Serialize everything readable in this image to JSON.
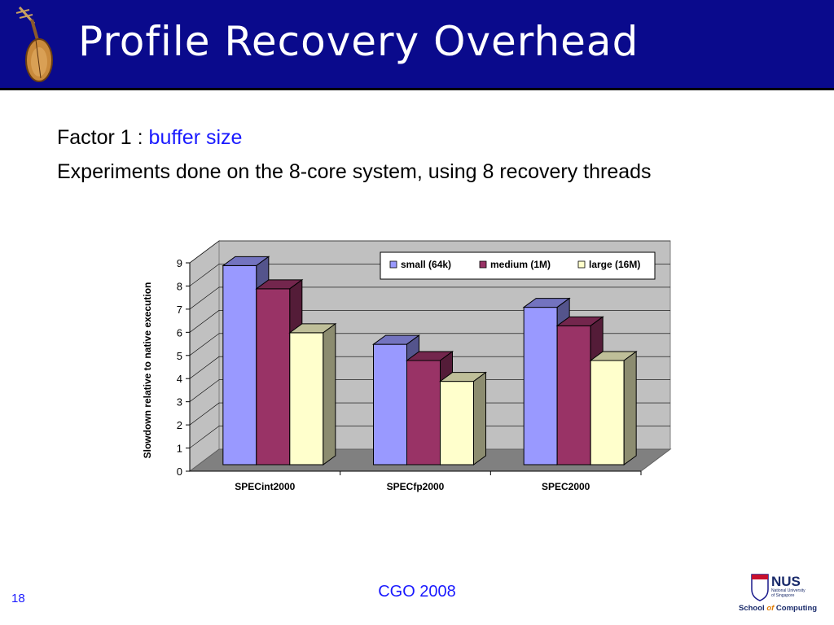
{
  "slide": {
    "title": "Profile Recovery Overhead",
    "factor_label": "Factor 1 : ",
    "factor_value": "buffer size",
    "experiments": "Experiments done on the 8-core system, using 8 recovery threads",
    "page_number": "18",
    "footer": "CGO 2008",
    "logo_icon": "pipa-lute-icon",
    "institution_logo": {
      "name": "NUS",
      "line1": "National University",
      "line2": "of Singapore",
      "school_prefix": "School ",
      "school_of": "of",
      "school_suffix": " Computing"
    }
  },
  "colors": {
    "title_bar": "#0a0a8c",
    "highlight_text": "#1a1aff"
  },
  "chart_data": {
    "type": "bar",
    "categories": [
      "SPECint2000",
      "SPECfp2000",
      "SPEC2000"
    ],
    "series": [
      {
        "name": "small (64k)",
        "values": [
          8.6,
          5.2,
          6.8
        ],
        "color": "#9999ff"
      },
      {
        "name": "medium (1M)",
        "values": [
          7.6,
          4.5,
          6.0
        ],
        "color": "#993366"
      },
      {
        "name": "large (16M)",
        "values": [
          5.7,
          3.6,
          4.5
        ],
        "color": "#ffffcc"
      }
    ],
    "ylabel": "Slowdown relative to native execution",
    "xlabel": "",
    "ylim": [
      0,
      9
    ],
    "yticks": [
      "0",
      "1",
      "2",
      "3",
      "4",
      "5",
      "6",
      "7",
      "8",
      "9"
    ],
    "grid": true,
    "legend_position": "top-right",
    "style": "3d"
  }
}
